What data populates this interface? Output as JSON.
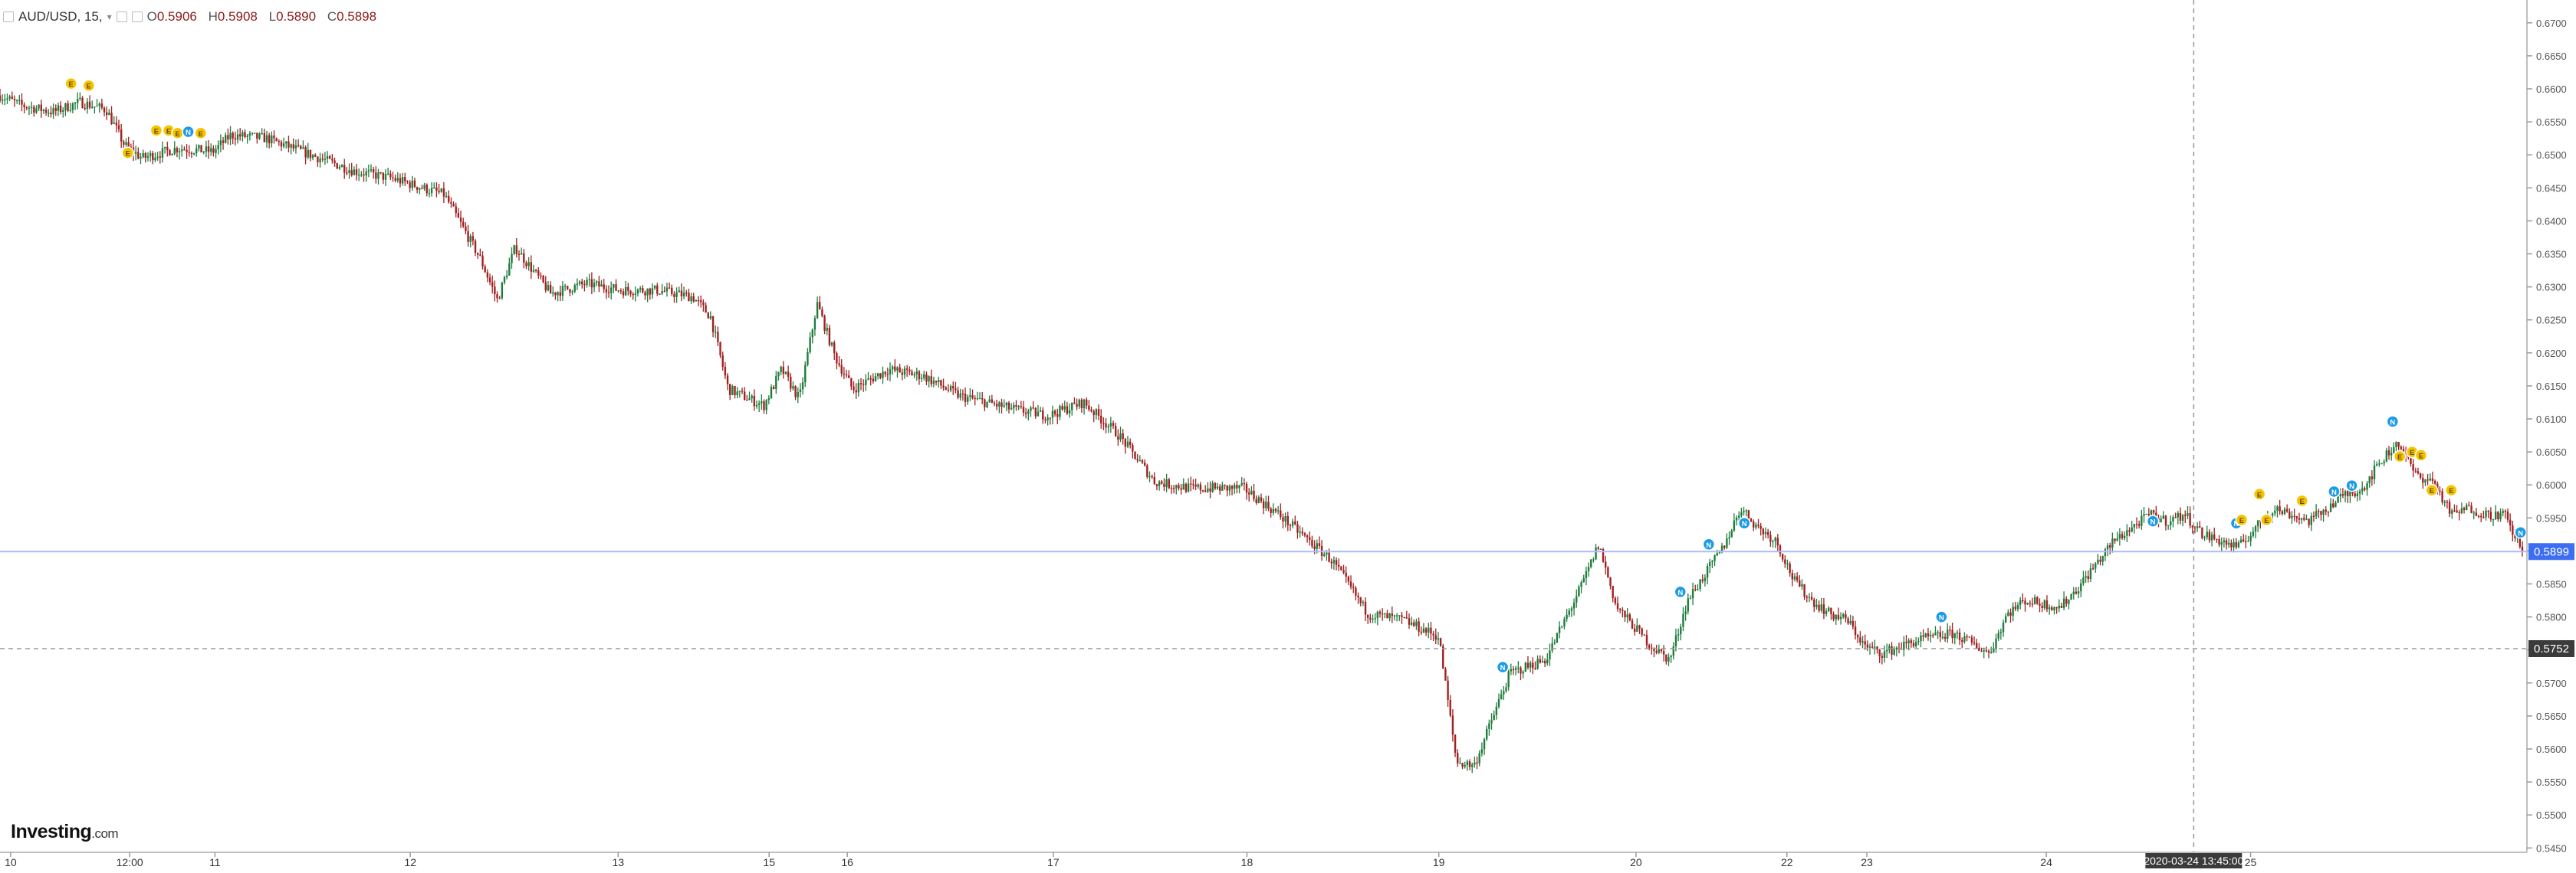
{
  "header": {
    "symbol": "AUD/USD, 15,",
    "open": "0.5906",
    "high": "0.5908",
    "low": "0.5890",
    "close": "0.5898",
    "open_label": "O",
    "high_label": "H",
    "low_label": "L",
    "close_label": "C"
  },
  "logo": {
    "brand": "Investing",
    "suffix": ".com"
  },
  "price_tag": {
    "last_price": "0.5899",
    "last_value": 0.5899,
    "color": "#3d6df2"
  },
  "crosshair": {
    "price": "0.5752",
    "price_value": 0.5752,
    "time": "2020-03-24 13:45:00"
  },
  "colors": {
    "up": "#1e7d3c",
    "down": "#a12020",
    "event_e": "#f5c400",
    "event_n": "#1e9be6"
  },
  "chart_data": {
    "type": "candlestick",
    "series_label": "AUD/USD, 15",
    "ylim": [
      0.545,
      0.6705
    ],
    "y_ticks": [
      "0.6700",
      "0.6650",
      "0.6600",
      "0.6550",
      "0.6500",
      "0.6450",
      "0.6400",
      "0.6350",
      "0.6300",
      "0.6250",
      "0.6200",
      "0.6150",
      "0.6100",
      "0.6050",
      "0.6000",
      "0.5950",
      "0.5900",
      "0.5850",
      "0.5800",
      "0.5750",
      "0.5700",
      "0.5650",
      "0.5600",
      "0.5550",
      "0.5500",
      "0.5450"
    ],
    "x_ticks": [
      "10",
      "12:00",
      "11",
      "12",
      "13",
      "15",
      "16",
      "17",
      "18",
      "19",
      "20",
      "22",
      "23",
      "24",
      "25"
    ],
    "close_path": [
      [
        0,
        0.659
      ],
      [
        1.2,
        0.6575
      ],
      [
        3,
        0.6565
      ],
      [
        4.5,
        0.658
      ],
      [
        6,
        0.6568
      ],
      [
        7,
        0.6515
      ],
      [
        8,
        0.6495
      ],
      [
        10,
        0.651
      ],
      [
        12,
        0.6505
      ],
      [
        13,
        0.653
      ],
      [
        15,
        0.6525
      ],
      [
        17,
        0.6505
      ],
      [
        20,
        0.6475
      ],
      [
        22,
        0.6465
      ],
      [
        25,
        0.644
      ],
      [
        27,
        0.6345
      ],
      [
        28,
        0.628
      ],
      [
        29,
        0.636
      ],
      [
        31,
        0.629
      ],
      [
        33,
        0.6305
      ],
      [
        35,
        0.6295
      ],
      [
        37,
        0.6295
      ],
      [
        39,
        0.6285
      ],
      [
        40,
        0.6255
      ],
      [
        41,
        0.6145
      ],
      [
        43,
        0.612
      ],
      [
        44,
        0.6175
      ],
      [
        45,
        0.613
      ],
      [
        46,
        0.6275
      ],
      [
        47,
        0.6195
      ],
      [
        48,
        0.6145
      ],
      [
        50,
        0.6175
      ],
      [
        52,
        0.6165
      ],
      [
        54,
        0.6135
      ],
      [
        57,
        0.6115
      ],
      [
        59,
        0.6105
      ],
      [
        61,
        0.6125
      ],
      [
        63,
        0.6075
      ],
      [
        65,
        0.6005
      ],
      [
        67,
        0.5995
      ],
      [
        70,
        0.5995
      ],
      [
        72,
        0.5955
      ],
      [
        75,
        0.5885
      ],
      [
        77,
        0.5805
      ],
      [
        79,
        0.5795
      ],
      [
        81,
        0.577
      ],
      [
        82,
        0.558
      ],
      [
        83,
        0.5575
      ],
      [
        85,
        0.5715
      ],
      [
        87,
        0.5735
      ],
      [
        89,
        0.5845
      ],
      [
        90,
        0.591
      ],
      [
        91,
        0.5815
      ],
      [
        93,
        0.5755
      ],
      [
        94,
        0.5735
      ],
      [
        95,
        0.5825
      ],
      [
        96,
        0.5865
      ],
      [
        97,
        0.5905
      ],
      [
        98,
        0.5965
      ],
      [
        99,
        0.5935
      ],
      [
        100,
        0.5915
      ],
      [
        101,
        0.5855
      ],
      [
        102,
        0.5825
      ],
      [
        103,
        0.5805
      ],
      [
        104,
        0.5795
      ],
      [
        105,
        0.5755
      ],
      [
        106,
        0.5745
      ],
      [
        108,
        0.5765
      ],
      [
        110,
        0.5775
      ],
      [
        112,
        0.5745
      ],
      [
        113,
        0.5805
      ],
      [
        114,
        0.5825
      ],
      [
        116,
        0.5815
      ],
      [
        117,
        0.5845
      ],
      [
        119,
        0.5915
      ],
      [
        120,
        0.5935
      ],
      [
        121,
        0.5955
      ],
      [
        122,
        0.5945
      ],
      [
        123,
        0.5955
      ],
      [
        124,
        0.5925
      ],
      [
        125,
        0.5915
      ],
      [
        126,
        0.5905
      ],
      [
        127,
        0.5935
      ],
      [
        128,
        0.5965
      ],
      [
        129,
        0.5955
      ],
      [
        130,
        0.5945
      ],
      [
        131,
        0.5965
      ],
      [
        132,
        0.5985
      ],
      [
        133,
        0.5995
      ],
      [
        134,
        0.6035
      ],
      [
        135,
        0.6065
      ],
      [
        136,
        0.6015
      ],
      [
        137,
        0.6005
      ],
      [
        138,
        0.5955
      ],
      [
        139,
        0.5965
      ],
      [
        140,
        0.5955
      ],
      [
        141,
        0.5955
      ],
      [
        142,
        0.5898
      ]
    ],
    "event_markers": [
      {
        "x": 4.0,
        "price": 0.6608,
        "kind": "E"
      },
      {
        "x": 5.0,
        "price": 0.6605,
        "kind": "E"
      },
      {
        "x": 7.2,
        "price": 0.6503,
        "kind": "E"
      },
      {
        "x": 8.8,
        "price": 0.6537,
        "kind": "E"
      },
      {
        "x": 9.5,
        "price": 0.6537,
        "kind": "E"
      },
      {
        "x": 10.0,
        "price": 0.6533,
        "kind": "E"
      },
      {
        "x": 10.6,
        "price": 0.6535,
        "kind": "N"
      },
      {
        "x": 11.3,
        "price": 0.6533,
        "kind": "E"
      },
      {
        "x": 84.6,
        "price": 0.5724,
        "kind": "N"
      },
      {
        "x": 94.6,
        "price": 0.5838,
        "kind": "N"
      },
      {
        "x": 96.2,
        "price": 0.591,
        "kind": "N"
      },
      {
        "x": 98.2,
        "price": 0.5942,
        "kind": "N"
      },
      {
        "x": 109.3,
        "price": 0.58,
        "kind": "N"
      },
      {
        "x": 121.2,
        "price": 0.5945,
        "kind": "N"
      },
      {
        "x": 125.9,
        "price": 0.5942,
        "kind": "N"
      },
      {
        "x": 126.2,
        "price": 0.5947,
        "kind": "E"
      },
      {
        "x": 127.2,
        "price": 0.5986,
        "kind": "E"
      },
      {
        "x": 127.6,
        "price": 0.5947,
        "kind": "E"
      },
      {
        "x": 129.6,
        "price": 0.5976,
        "kind": "E"
      },
      {
        "x": 131.4,
        "price": 0.599,
        "kind": "N"
      },
      {
        "x": 132.4,
        "price": 0.5999,
        "kind": "N"
      },
      {
        "x": 134.7,
        "price": 0.6096,
        "kind": "N"
      },
      {
        "x": 135.1,
        "price": 0.6043,
        "kind": "E"
      },
      {
        "x": 135.8,
        "price": 0.605,
        "kind": "E"
      },
      {
        "x": 136.3,
        "price": 0.6045,
        "kind": "E"
      },
      {
        "x": 136.9,
        "price": 0.5992,
        "kind": "E"
      },
      {
        "x": 138.0,
        "price": 0.5992,
        "kind": "E"
      },
      {
        "x": 141.9,
        "price": 0.5928,
        "kind": "N"
      }
    ]
  }
}
